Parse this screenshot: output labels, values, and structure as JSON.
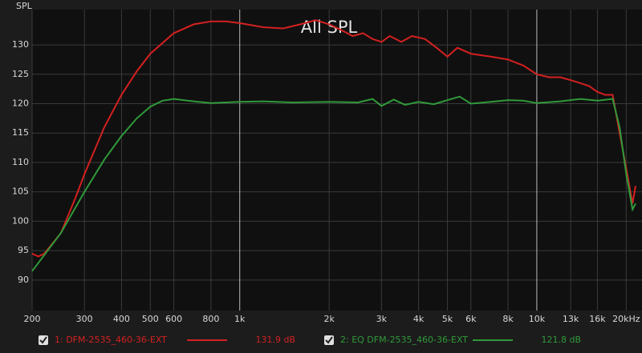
{
  "chart_data": {
    "type": "line",
    "title": "All SPL",
    "y_label": "SPL",
    "log_x": true,
    "grid": true,
    "xlim": [
      200,
      22600
    ],
    "ylim": [
      84.8,
      136
    ],
    "xticks": [
      200,
      300,
      400,
      500,
      600,
      800,
      {
        "value": 1000,
        "label": "1k"
      },
      {
        "value": 2000,
        "label": "2k"
      },
      {
        "value": 3000,
        "label": "3k"
      },
      {
        "value": 4000,
        "label": "4k"
      },
      {
        "value": 5000,
        "label": "5k"
      },
      {
        "value": 6000,
        "label": "6k"
      },
      {
        "value": 8000,
        "label": "8k"
      },
      {
        "value": 10000,
        "label": "10k"
      },
      {
        "value": 13000,
        "label": "13k"
      },
      {
        "value": 16000,
        "label": "16k"
      },
      {
        "value": 20000,
        "label": "20kHz"
      }
    ],
    "yticks": [
      90,
      95,
      100,
      105,
      110,
      115,
      120,
      125,
      130
    ],
    "series": [
      {
        "name": "1: DFM-2535_460-36-EXT",
        "color": "#d42020",
        "legend_value": 131.9,
        "legend_value_label": "131.9 dB",
        "x": [
          200,
          210,
          220,
          250,
          280,
          300,
          350,
          400,
          450,
          500,
          600,
          700,
          800,
          900,
          1000,
          1200,
          1400,
          1600,
          1800,
          2000,
          2200,
          2400,
          2600,
          2800,
          3000,
          3200,
          3500,
          3800,
          4200,
          4600,
          5000,
          5400,
          6000,
          7000,
          8000,
          9000,
          10000,
          11000,
          12000,
          13000,
          14000,
          15000,
          16000,
          17000,
          18000,
          19000,
          20000,
          21000,
          21500
        ],
        "values": [
          94.5,
          94,
          94.5,
          98,
          104,
          108,
          116,
          121.5,
          125.5,
          128.5,
          132,
          133.5,
          134,
          134,
          133.7,
          133,
          132.8,
          133.5,
          134.2,
          133.5,
          132.5,
          131.5,
          132,
          131,
          130.5,
          131.5,
          130.5,
          131.5,
          131,
          129.5,
          128,
          129.5,
          128.5,
          128,
          127.5,
          126.5,
          125,
          124.5,
          124.5,
          124,
          123.5,
          123,
          122,
          121.5,
          121.5,
          115,
          109,
          103,
          106
        ]
      },
      {
        "name": "2: EQ DFM-2535_460-36-EXT",
        "color": "#2f9a3a",
        "legend_value": 121.8,
        "legend_value_label": "121.8 dB",
        "x": [
          200,
          250,
          300,
          350,
          400,
          450,
          500,
          550,
          600,
          700,
          800,
          1000,
          1200,
          1500,
          2000,
          2500,
          2800,
          3000,
          3300,
          3600,
          4000,
          4500,
          5000,
          5500,
          6000,
          7000,
          8000,
          9000,
          10000,
          12000,
          14000,
          16000,
          18000,
          19000,
          20000,
          21000,
          21500
        ],
        "values": [
          91.5,
          98,
          105,
          110.5,
          114.5,
          117.5,
          119.5,
          120.5,
          120.8,
          120.4,
          120.1,
          120.3,
          120.4,
          120.2,
          120.3,
          120.2,
          120.8,
          119.6,
          120.7,
          119.8,
          120.3,
          119.9,
          120.6,
          121.2,
          120,
          120.3,
          120.6,
          120.5,
          120.1,
          120.4,
          120.8,
          120.5,
          120.8,
          116,
          108,
          102,
          103
        ]
      }
    ]
  }
}
